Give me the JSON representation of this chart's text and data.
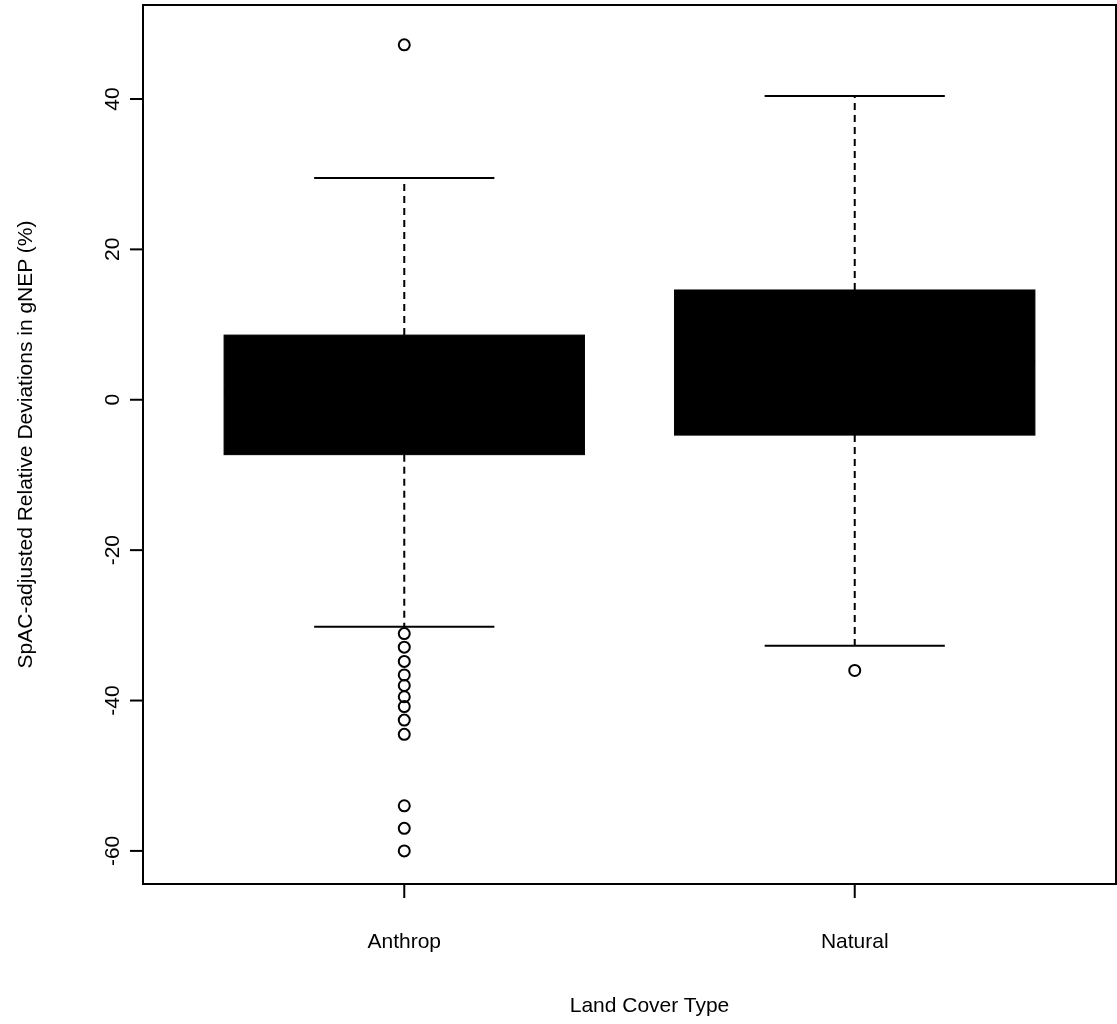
{
  "chart_data": {
    "type": "box",
    "xlabel": "Land Cover Type",
    "ylabel": "SpAC-adjusted Relative Deviations in gNEP (%)",
    "categories": [
      "Anthrop",
      "Natural"
    ],
    "series": [
      {
        "color": "#000000",
        "boxes": [
          {
            "low": -30.2,
            "q1": -7.3,
            "median": 1,
            "q3": 8.6,
            "high": 29.5,
            "outliers": [
              47.2,
              -31.1,
              -32.9,
              -34.8,
              -36.6,
              -38,
              -39.5,
              -40.8,
              -42.6,
              -44.5,
              -54,
              -57,
              -60
            ]
          },
          {
            "low": -32.7,
            "q1": -4.7,
            "median": 5,
            "q3": 14.6,
            "high": 40.4,
            "outliers": [
              -36
            ]
          }
        ]
      }
    ],
    "ylim": [
      -64.4,
      52.5
    ],
    "yticks": [
      -60,
      -40,
      -20,
      0,
      20,
      40
    ]
  }
}
